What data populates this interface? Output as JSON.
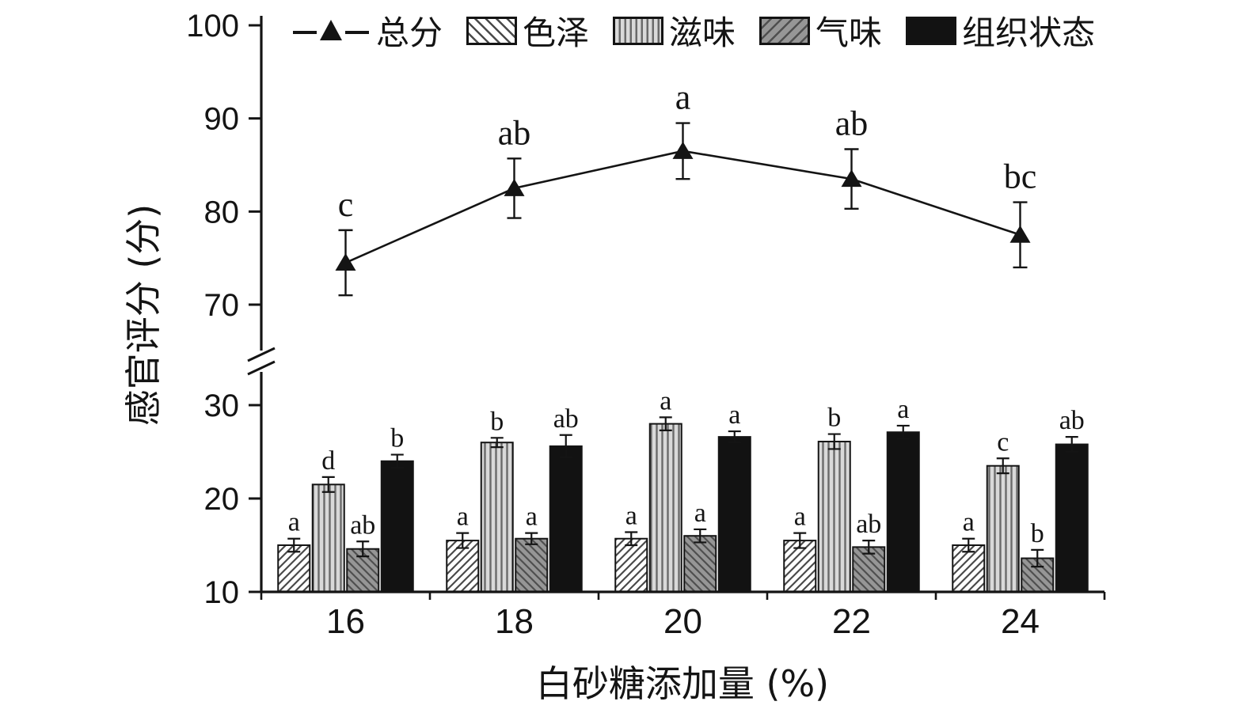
{
  "chart_data": {
    "type": "bar",
    "subtype": "grouped-bars-with-broken-axis-line-series",
    "categories": [
      "16",
      "18",
      "20",
      "22",
      "24"
    ],
    "xlabel": "白砂糖添加量 (%)",
    "ylabel": "感官评分 (分)",
    "axis_break": true,
    "top_axis": {
      "range": [
        70,
        100
      ],
      "ticks": [
        100,
        90,
        80,
        70
      ]
    },
    "bottom_axis": {
      "range": [
        10,
        33
      ],
      "ticks": [
        30,
        20,
        10
      ]
    },
    "line_series": {
      "name": "总分",
      "values": [
        74.5,
        82.5,
        86.5,
        83.5,
        77.5
      ],
      "errors": [
        3.5,
        3.2,
        3.0,
        3.2,
        3.5
      ],
      "letters": [
        "c",
        "ab",
        "a",
        "ab",
        "bc"
      ]
    },
    "bar_series": [
      {
        "name": "色泽",
        "pattern": "diag-up",
        "values": [
          15.0,
          15.5,
          15.7,
          15.5,
          15.0
        ],
        "errors": [
          0.7,
          0.8,
          0.7,
          0.8,
          0.7
        ],
        "letters": [
          "a",
          "a",
          "a",
          "a",
          "a"
        ]
      },
      {
        "name": "滋味",
        "pattern": "vertical",
        "values": [
          21.5,
          26.0,
          28.0,
          26.1,
          23.5
        ],
        "errors": [
          0.8,
          0.5,
          0.7,
          0.8,
          0.8
        ],
        "letters": [
          "d",
          "b",
          "a",
          "b",
          "c"
        ]
      },
      {
        "name": "气味",
        "pattern": "diag-down",
        "values": [
          14.6,
          15.7,
          16.0,
          14.8,
          13.6
        ],
        "errors": [
          0.8,
          0.6,
          0.7,
          0.7,
          0.9
        ],
        "letters": [
          "ab",
          "a",
          "a",
          "ab",
          "b"
        ]
      },
      {
        "name": "组织状态",
        "pattern": "solid",
        "values": [
          24.0,
          25.6,
          26.6,
          27.1,
          25.8
        ],
        "errors": [
          0.7,
          1.2,
          0.6,
          0.7,
          0.8
        ],
        "letters": [
          "b",
          "ab",
          "a",
          "a",
          "ab"
        ]
      }
    ],
    "legend": [
      {
        "label": "总分",
        "type": "line-triangle"
      },
      {
        "label": "色泽",
        "type": "swatch-diag-up"
      },
      {
        "label": "滋味",
        "type": "swatch-vertical"
      },
      {
        "label": "气味",
        "type": "swatch-diag-down"
      },
      {
        "label": "组织状态",
        "type": "swatch-solid"
      }
    ],
    "ink_color": "#141414"
  }
}
